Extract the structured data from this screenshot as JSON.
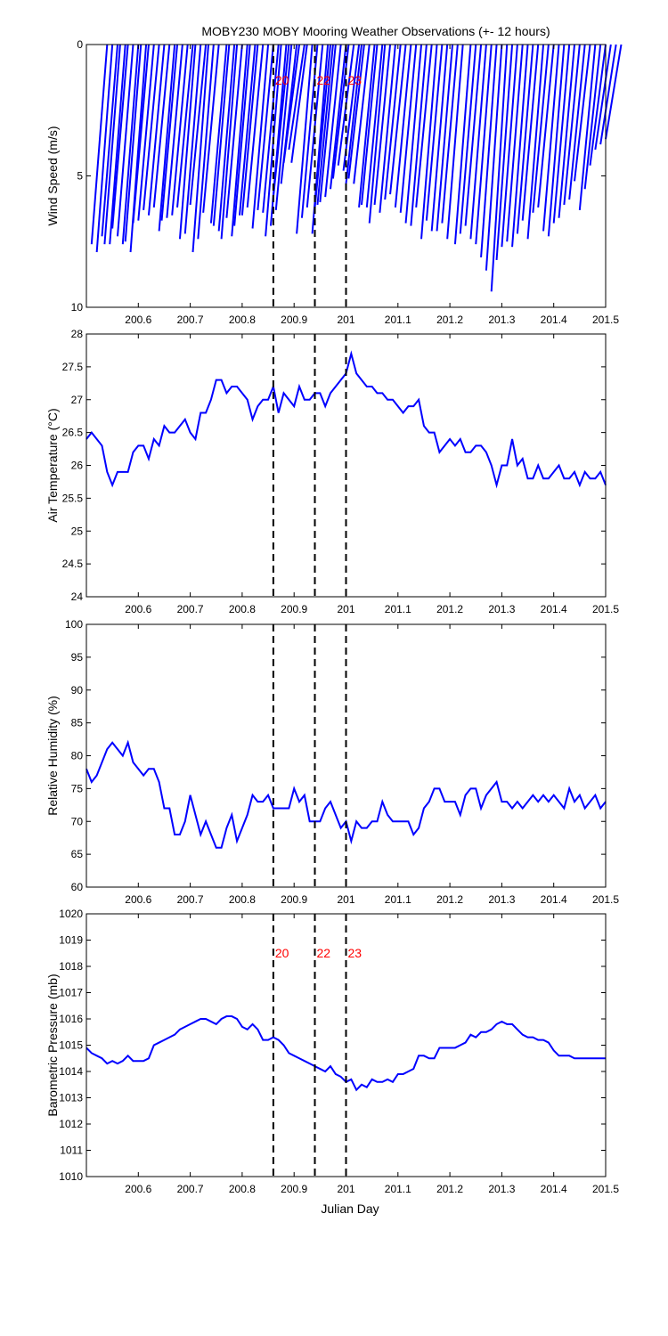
{
  "figure": {
    "title": "MOBY230 MOBY Mooring Weather Observations (+- 12 hours)",
    "xlabel": "Julian Day",
    "colors": {
      "data": "#0000ff",
      "marker_line": "#000000",
      "marker_label": "#ff0000",
      "axis": "#000000"
    }
  },
  "chart_data": [
    {
      "type": "line",
      "name": "wind",
      "ylabel": "Wind Speed (m/s)",
      "xlim": [
        200.5,
        201.5
      ],
      "ylim": [
        0,
        10
      ],
      "y_reversed": true,
      "yticks": [
        0,
        5,
        10
      ],
      "xticks": [
        200.6,
        200.7,
        200.8,
        200.9,
        201,
        201.1,
        201.2,
        201.3,
        201.4,
        201.5
      ],
      "xtick_labels": [
        "200.6",
        "200.7",
        "200.8",
        "200.9",
        "201",
        "201.1",
        "201.2",
        "201.3",
        "201.4",
        "201.5"
      ],
      "vlines": [
        200.86,
        200.94,
        201.0
      ],
      "vline_labels": [
        "20",
        "22",
        "23"
      ],
      "wind_sticks": [
        [
          200.51,
          7.6
        ],
        [
          200.52,
          7.9
        ],
        [
          200.53,
          7.3
        ],
        [
          200.535,
          7.6
        ],
        [
          200.545,
          7.6
        ],
        [
          200.55,
          7.0
        ],
        [
          200.56,
          7.3
        ],
        [
          200.57,
          7.6
        ],
        [
          200.575,
          7.5
        ],
        [
          200.585,
          7.9
        ],
        [
          200.59,
          6.8
        ],
        [
          200.6,
          6.7
        ],
        [
          200.61,
          6.3
        ],
        [
          200.62,
          6.5
        ],
        [
          200.63,
          6.2
        ],
        [
          200.64,
          7.1
        ],
        [
          200.645,
          6.7
        ],
        [
          200.655,
          6.6
        ],
        [
          200.665,
          6.5
        ],
        [
          200.675,
          6.2
        ],
        [
          200.68,
          7.4
        ],
        [
          200.69,
          7.2
        ],
        [
          200.7,
          6.1
        ],
        [
          200.705,
          7.9
        ],
        [
          200.715,
          7.4
        ],
        [
          200.725,
          6.4
        ],
        [
          200.74,
          6.8
        ],
        [
          200.745,
          6.9
        ],
        [
          200.755,
          7.1
        ],
        [
          200.76,
          7.4
        ],
        [
          200.77,
          6.6
        ],
        [
          200.78,
          7.3
        ],
        [
          200.785,
          6.9
        ],
        [
          200.795,
          6.5
        ],
        [
          200.8,
          6.5
        ],
        [
          200.81,
          6.2
        ],
        [
          200.82,
          7.0
        ],
        [
          200.83,
          6.3
        ],
        [
          200.84,
          6.4
        ],
        [
          200.845,
          7.3
        ],
        [
          200.855,
          6.9
        ],
        [
          200.86,
          5.8
        ],
        [
          200.865,
          6.3
        ],
        [
          200.875,
          5.3
        ],
        [
          200.88,
          4.5
        ],
        [
          200.89,
          4.0
        ],
        [
          200.895,
          4.5
        ],
        [
          200.905,
          7.2
        ],
        [
          200.915,
          6.6
        ],
        [
          200.925,
          6.2
        ],
        [
          200.935,
          7.2
        ],
        [
          200.94,
          6.2
        ],
        [
          200.945,
          6.1
        ],
        [
          200.95,
          6.0
        ],
        [
          200.96,
          5.8
        ],
        [
          200.97,
          5.5
        ],
        [
          200.975,
          5.1
        ],
        [
          200.985,
          4.6
        ],
        [
          200.995,
          4.8
        ],
        [
          201.0,
          5.3
        ],
        [
          201.005,
          5.1
        ],
        [
          201.015,
          5.3
        ],
        [
          201.025,
          6.2
        ],
        [
          201.03,
          6.1
        ],
        [
          201.04,
          6.2
        ],
        [
          201.045,
          6.8
        ],
        [
          201.055,
          6.1
        ],
        [
          201.065,
          6.4
        ],
        [
          201.075,
          5.9
        ],
        [
          201.085,
          5.7
        ],
        [
          201.095,
          6.2
        ],
        [
          201.105,
          6.4
        ],
        [
          201.115,
          6.8
        ],
        [
          201.125,
          6.9
        ],
        [
          201.135,
          6.2
        ],
        [
          201.145,
          7.4
        ],
        [
          201.155,
          6.7
        ],
        [
          201.165,
          7.1
        ],
        [
          201.175,
          7.1
        ],
        [
          201.185,
          6.8
        ],
        [
          201.195,
          7.4
        ],
        [
          201.21,
          7.6
        ],
        [
          201.22,
          7.2
        ],
        [
          201.23,
          6.9
        ],
        [
          201.24,
          7.4
        ],
        [
          201.25,
          7.6
        ],
        [
          201.26,
          8.1
        ],
        [
          201.27,
          8.6
        ],
        [
          201.28,
          9.4
        ],
        [
          201.29,
          8.2
        ],
        [
          201.3,
          7.7
        ],
        [
          201.31,
          7.5
        ],
        [
          201.32,
          7.7
        ],
        [
          201.33,
          7.2
        ],
        [
          201.34,
          6.7
        ],
        [
          201.35,
          7.4
        ],
        [
          201.36,
          6.4
        ],
        [
          201.37,
          6.2
        ],
        [
          201.38,
          7.1
        ],
        [
          201.39,
          7.3
        ],
        [
          201.4,
          6.8
        ],
        [
          201.41,
          6.6
        ],
        [
          201.42,
          6.1
        ],
        [
          201.43,
          5.9
        ],
        [
          201.44,
          5.2
        ],
        [
          201.45,
          6.3
        ],
        [
          201.46,
          5.5
        ],
        [
          201.47,
          4.6
        ],
        [
          201.48,
          4.0
        ],
        [
          201.49,
          3.8
        ],
        [
          201.5,
          3.6
        ]
      ],
      "stick_dx": 0.03
    },
    {
      "type": "line",
      "name": "air_temp",
      "ylabel": "Air Temperature (°C)",
      "xlim": [
        200.5,
        201.5
      ],
      "ylim": [
        24,
        28
      ],
      "yticks": [
        24,
        24.5,
        25,
        25.5,
        26,
        26.5,
        27,
        27.5,
        28
      ],
      "xticks": [
        200.6,
        200.7,
        200.8,
        200.9,
        201,
        201.1,
        201.2,
        201.3,
        201.4,
        201.5
      ],
      "xtick_labels": [
        "200.6",
        "200.7",
        "200.8",
        "200.9",
        "201",
        "201.1",
        "201.2",
        "201.3",
        "201.4",
        "201.5"
      ],
      "vlines": [
        200.86,
        200.94,
        201.0
      ],
      "x": [
        200.5,
        200.51,
        200.52,
        200.53,
        200.54,
        200.55,
        200.56,
        200.57,
        200.58,
        200.59,
        200.6,
        200.61,
        200.62,
        200.63,
        200.64,
        200.65,
        200.66,
        200.67,
        200.68,
        200.69,
        200.7,
        200.71,
        200.72,
        200.73,
        200.74,
        200.75,
        200.76,
        200.77,
        200.78,
        200.79,
        200.8,
        200.81,
        200.82,
        200.83,
        200.84,
        200.85,
        200.86,
        200.87,
        200.88,
        200.89,
        200.9,
        200.91,
        200.92,
        200.93,
        200.94,
        200.95,
        200.96,
        200.97,
        200.98,
        200.99,
        201.0,
        201.01,
        201.02,
        201.03,
        201.04,
        201.05,
        201.06,
        201.07,
        201.08,
        201.09,
        201.1,
        201.11,
        201.12,
        201.13,
        201.14,
        201.15,
        201.16,
        201.17,
        201.18,
        201.19,
        201.2,
        201.21,
        201.22,
        201.23,
        201.24,
        201.25,
        201.26,
        201.27,
        201.28,
        201.29,
        201.3,
        201.31,
        201.32,
        201.33,
        201.34,
        201.35,
        201.36,
        201.37,
        201.38,
        201.39,
        201.4,
        201.41,
        201.42,
        201.43,
        201.44,
        201.45,
        201.46,
        201.47,
        201.48,
        201.49,
        201.5
      ],
      "y": [
        26.4,
        26.5,
        26.4,
        26.3,
        25.9,
        25.7,
        25.9,
        25.9,
        25.9,
        26.2,
        26.3,
        26.3,
        26.1,
        26.4,
        26.3,
        26.6,
        26.5,
        26.5,
        26.6,
        26.7,
        26.5,
        26.4,
        26.8,
        26.8,
        27.0,
        27.3,
        27.3,
        27.1,
        27.2,
        27.2,
        27.1,
        27.0,
        26.7,
        26.9,
        27.0,
        27.0,
        27.2,
        26.8,
        27.1,
        27.0,
        26.9,
        27.2,
        27.0,
        27.0,
        27.1,
        27.1,
        26.9,
        27.1,
        27.2,
        27.3,
        27.4,
        27.7,
        27.4,
        27.3,
        27.2,
        27.2,
        27.1,
        27.1,
        27.0,
        27.0,
        26.9,
        26.8,
        26.9,
        26.9,
        27.0,
        26.6,
        26.5,
        26.5,
        26.2,
        26.3,
        26.4,
        26.3,
        26.4,
        26.2,
        26.2,
        26.3,
        26.3,
        26.2,
        26.0,
        25.7,
        26.0,
        26.0,
        26.4,
        26.0,
        26.1,
        25.8,
        25.8,
        26.0,
        25.8,
        25.8,
        25.9,
        26.0,
        25.8,
        25.8,
        25.9,
        25.7,
        25.9,
        25.8,
        25.8,
        25.9,
        25.7
      ]
    },
    {
      "type": "line",
      "name": "humidity",
      "ylabel": "Relative Humidity (%)",
      "xlim": [
        200.5,
        201.5
      ],
      "ylim": [
        60,
        100
      ],
      "yticks": [
        60,
        65,
        70,
        75,
        80,
        85,
        90,
        95,
        100
      ],
      "xticks": [
        200.6,
        200.7,
        200.8,
        200.9,
        201,
        201.1,
        201.2,
        201.3,
        201.4,
        201.5
      ],
      "xtick_labels": [
        "200.6",
        "200.7",
        "200.8",
        "200.9",
        "201",
        "201.1",
        "201.2",
        "201.3",
        "201.4",
        "201.5"
      ],
      "vlines": [
        200.86,
        200.94,
        201.0
      ],
      "x": [
        200.5,
        200.51,
        200.52,
        200.53,
        200.54,
        200.55,
        200.56,
        200.57,
        200.58,
        200.59,
        200.6,
        200.61,
        200.62,
        200.63,
        200.64,
        200.65,
        200.66,
        200.67,
        200.68,
        200.69,
        200.7,
        200.71,
        200.72,
        200.73,
        200.74,
        200.75,
        200.76,
        200.77,
        200.78,
        200.79,
        200.8,
        200.81,
        200.82,
        200.83,
        200.84,
        200.85,
        200.86,
        200.87,
        200.88,
        200.89,
        200.9,
        200.91,
        200.92,
        200.93,
        200.94,
        200.95,
        200.96,
        200.97,
        200.98,
        200.99,
        201.0,
        201.01,
        201.02,
        201.03,
        201.04,
        201.05,
        201.06,
        201.07,
        201.08,
        201.09,
        201.1,
        201.11,
        201.12,
        201.13,
        201.14,
        201.15,
        201.16,
        201.17,
        201.18,
        201.19,
        201.2,
        201.21,
        201.22,
        201.23,
        201.24,
        201.25,
        201.26,
        201.27,
        201.28,
        201.29,
        201.3,
        201.31,
        201.32,
        201.33,
        201.34,
        201.35,
        201.36,
        201.37,
        201.38,
        201.39,
        201.4,
        201.41,
        201.42,
        201.43,
        201.44,
        201.45,
        201.46,
        201.47,
        201.48,
        201.49,
        201.5
      ],
      "y": [
        78,
        76,
        77,
        79,
        81,
        82,
        81,
        80,
        82,
        79,
        78,
        77,
        78,
        78,
        76,
        72,
        72,
        68,
        68,
        70,
        74,
        71,
        68,
        70,
        68,
        66,
        66,
        69,
        71,
        67,
        69,
        71,
        74,
        73,
        73,
        74,
        72,
        72,
        72,
        72,
        75,
        73,
        74,
        70,
        70,
        70,
        72,
        73,
        71,
        69,
        70,
        67,
        70,
        69,
        69,
        70,
        70,
        73,
        71,
        70,
        70,
        70,
        70,
        68,
        69,
        72,
        73,
        75,
        75,
        73,
        73,
        73,
        71,
        74,
        75,
        75,
        72,
        74,
        75,
        76,
        73,
        73,
        72,
        73,
        72,
        73,
        74,
        73,
        74,
        73,
        74,
        73,
        72,
        75,
        73,
        74,
        72,
        73,
        74,
        72,
        73
      ]
    },
    {
      "type": "line",
      "name": "pressure",
      "ylabel": "Barometric Pressure (mb)",
      "xlim": [
        200.5,
        201.5
      ],
      "ylim": [
        1010,
        1020
      ],
      "yticks": [
        1010,
        1011,
        1012,
        1013,
        1014,
        1015,
        1016,
        1017,
        1018,
        1019,
        1020
      ],
      "xticks": [
        200.6,
        200.7,
        200.8,
        200.9,
        201,
        201.1,
        201.2,
        201.3,
        201.4,
        201.5
      ],
      "xtick_labels": [
        "200.6",
        "200.7",
        "200.8",
        "200.9",
        "201",
        "201.1",
        "201.2",
        "201.3",
        "201.4",
        "201.5"
      ],
      "vlines": [
        200.86,
        200.94,
        201.0
      ],
      "vline_labels": [
        "20",
        "22",
        "23"
      ],
      "x": [
        200.5,
        200.51,
        200.52,
        200.53,
        200.54,
        200.55,
        200.56,
        200.57,
        200.58,
        200.59,
        200.6,
        200.61,
        200.62,
        200.63,
        200.64,
        200.65,
        200.66,
        200.67,
        200.68,
        200.69,
        200.7,
        200.71,
        200.72,
        200.73,
        200.74,
        200.75,
        200.76,
        200.77,
        200.78,
        200.79,
        200.8,
        200.81,
        200.82,
        200.83,
        200.84,
        200.85,
        200.86,
        200.87,
        200.88,
        200.89,
        200.9,
        200.91,
        200.92,
        200.93,
        200.94,
        200.95,
        200.96,
        200.97,
        200.98,
        200.99,
        201.0,
        201.01,
        201.02,
        201.03,
        201.04,
        201.05,
        201.06,
        201.07,
        201.08,
        201.09,
        201.1,
        201.11,
        201.12,
        201.13,
        201.14,
        201.15,
        201.16,
        201.17,
        201.18,
        201.19,
        201.2,
        201.21,
        201.22,
        201.23,
        201.24,
        201.25,
        201.26,
        201.27,
        201.28,
        201.29,
        201.3,
        201.31,
        201.32,
        201.33,
        201.34,
        201.35,
        201.36,
        201.37,
        201.38,
        201.39,
        201.4,
        201.41,
        201.42,
        201.43,
        201.44,
        201.45,
        201.46,
        201.47,
        201.48,
        201.49,
        201.5
      ],
      "y": [
        1014.9,
        1014.7,
        1014.6,
        1014.5,
        1014.3,
        1014.4,
        1014.3,
        1014.4,
        1014.6,
        1014.4,
        1014.4,
        1014.4,
        1014.5,
        1015.0,
        1015.1,
        1015.2,
        1015.3,
        1015.4,
        1015.6,
        1015.7,
        1015.8,
        1015.9,
        1016.0,
        1016.0,
        1015.9,
        1015.8,
        1016.0,
        1016.1,
        1016.1,
        1016.0,
        1015.7,
        1015.6,
        1015.8,
        1015.6,
        1015.2,
        1015.2,
        1015.3,
        1015.2,
        1015.0,
        1014.7,
        1014.6,
        1014.5,
        1014.4,
        1014.3,
        1014.2,
        1014.1,
        1014.0,
        1014.2,
        1013.9,
        1013.8,
        1013.6,
        1013.7,
        1013.3,
        1013.5,
        1013.4,
        1013.7,
        1013.6,
        1013.6,
        1013.7,
        1013.6,
        1013.9,
        1013.9,
        1014.0,
        1014.1,
        1014.6,
        1014.6,
        1014.5,
        1014.5,
        1014.9,
        1014.9,
        1014.9,
        1014.9,
        1015.0,
        1015.1,
        1015.4,
        1015.3,
        1015.5,
        1015.5,
        1015.6,
        1015.8,
        1015.9,
        1015.8,
        1015.8,
        1015.6,
        1015.4,
        1015.3,
        1015.3,
        1015.2,
        1015.2,
        1015.1,
        1014.8,
        1014.6,
        1014.6,
        1014.6,
        1014.5,
        1014.5,
        1014.5,
        1014.5,
        1014.5,
        1014.5,
        1014.5
      ]
    }
  ]
}
